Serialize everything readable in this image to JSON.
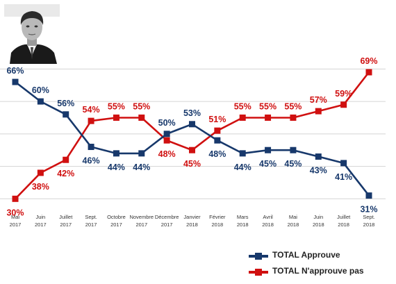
{
  "chart_data": {
    "type": "line",
    "categories": [
      [
        "Mai",
        "2017"
      ],
      [
        "Juin",
        "2017"
      ],
      [
        "Juillet",
        "2017"
      ],
      [
        "Sept.",
        "2017"
      ],
      [
        "Octobre",
        "2017"
      ],
      [
        "Novembre",
        "2017"
      ],
      [
        "Décembre",
        "2017"
      ],
      [
        "Janvier",
        "2018"
      ],
      [
        "Février",
        "2018"
      ],
      [
        "Mars",
        "2018"
      ],
      [
        "Avril",
        "2018"
      ],
      [
        "Mai",
        "2018"
      ],
      [
        "Juin",
        "2018"
      ],
      [
        "Juillet",
        "2018"
      ],
      [
        "Sept.",
        "2018"
      ]
    ],
    "series": [
      {
        "name": "TOTAL Approuve",
        "color": "#17386b",
        "values": [
          66,
          60,
          56,
          46,
          44,
          44,
          50,
          53,
          48,
          44,
          45,
          45,
          43,
          41,
          31
        ],
        "labels": [
          "66%",
          "60%",
          "56%",
          "46%",
          "44%",
          "44%",
          "50%",
          "53%",
          "48%",
          "44%",
          "45%",
          "45%",
          "43%",
          "41%",
          "31%"
        ]
      },
      {
        "name": "TOTAL N'approuve pas",
        "color": "#d01010",
        "values": [
          30,
          38,
          42,
          54,
          55,
          55,
          48,
          45,
          51,
          55,
          55,
          55,
          57,
          59,
          69
        ],
        "labels": [
          "30%",
          "38%",
          "42%",
          "54%",
          "55%",
          "55%",
          "48%",
          "45%",
          "51%",
          "55%",
          "55%",
          "55%",
          "57%",
          "59%",
          "69%"
        ]
      }
    ],
    "ylim": [
      26,
      72
    ],
    "grid": true,
    "legend_position": "bottom-right",
    "image": "portrait-photo"
  }
}
